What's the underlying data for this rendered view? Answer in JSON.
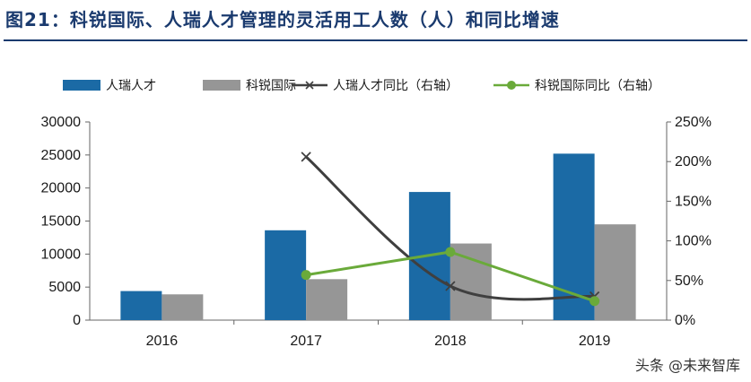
{
  "header": {
    "title": "图21：科锐国际、人瑞人才管理的灵活用工人数（人）和同比增速"
  },
  "watermark": "头条 @未来智库",
  "chart_data": {
    "type": "bar",
    "categories": [
      "2016",
      "2017",
      "2018",
      "2019"
    ],
    "series": [
      {
        "name": "人瑞人才",
        "type": "bar",
        "axis": "left",
        "color": "#1b6aa5",
        "values": [
          4400,
          13600,
          19400,
          25200
        ]
      },
      {
        "name": "科锐国际",
        "type": "bar",
        "axis": "left",
        "color": "#969696",
        "values": [
          3900,
          6200,
          11600,
          14500
        ]
      },
      {
        "name": "人瑞人才同比（右轴）",
        "type": "line",
        "axis": "right",
        "color": "#3f3f3f",
        "marker": "x",
        "values": [
          null,
          2.06,
          0.43,
          0.3
        ]
      },
      {
        "name": "科锐国际同比（右轴）",
        "type": "line",
        "axis": "right",
        "color": "#6aaa3a",
        "marker": "circle",
        "values": [
          null,
          0.57,
          0.86,
          0.24
        ]
      }
    ],
    "y_left": {
      "ylim": [
        0,
        30000
      ],
      "ticks": [
        "0",
        "5000",
        "10000",
        "15000",
        "20000",
        "25000",
        "30000"
      ]
    },
    "y_right": {
      "ylim": [
        0,
        2.5
      ],
      "ticks": [
        "0%",
        "50%",
        "100%",
        "150%",
        "200%",
        "250%"
      ]
    },
    "legend_position": "top",
    "grid": false
  }
}
